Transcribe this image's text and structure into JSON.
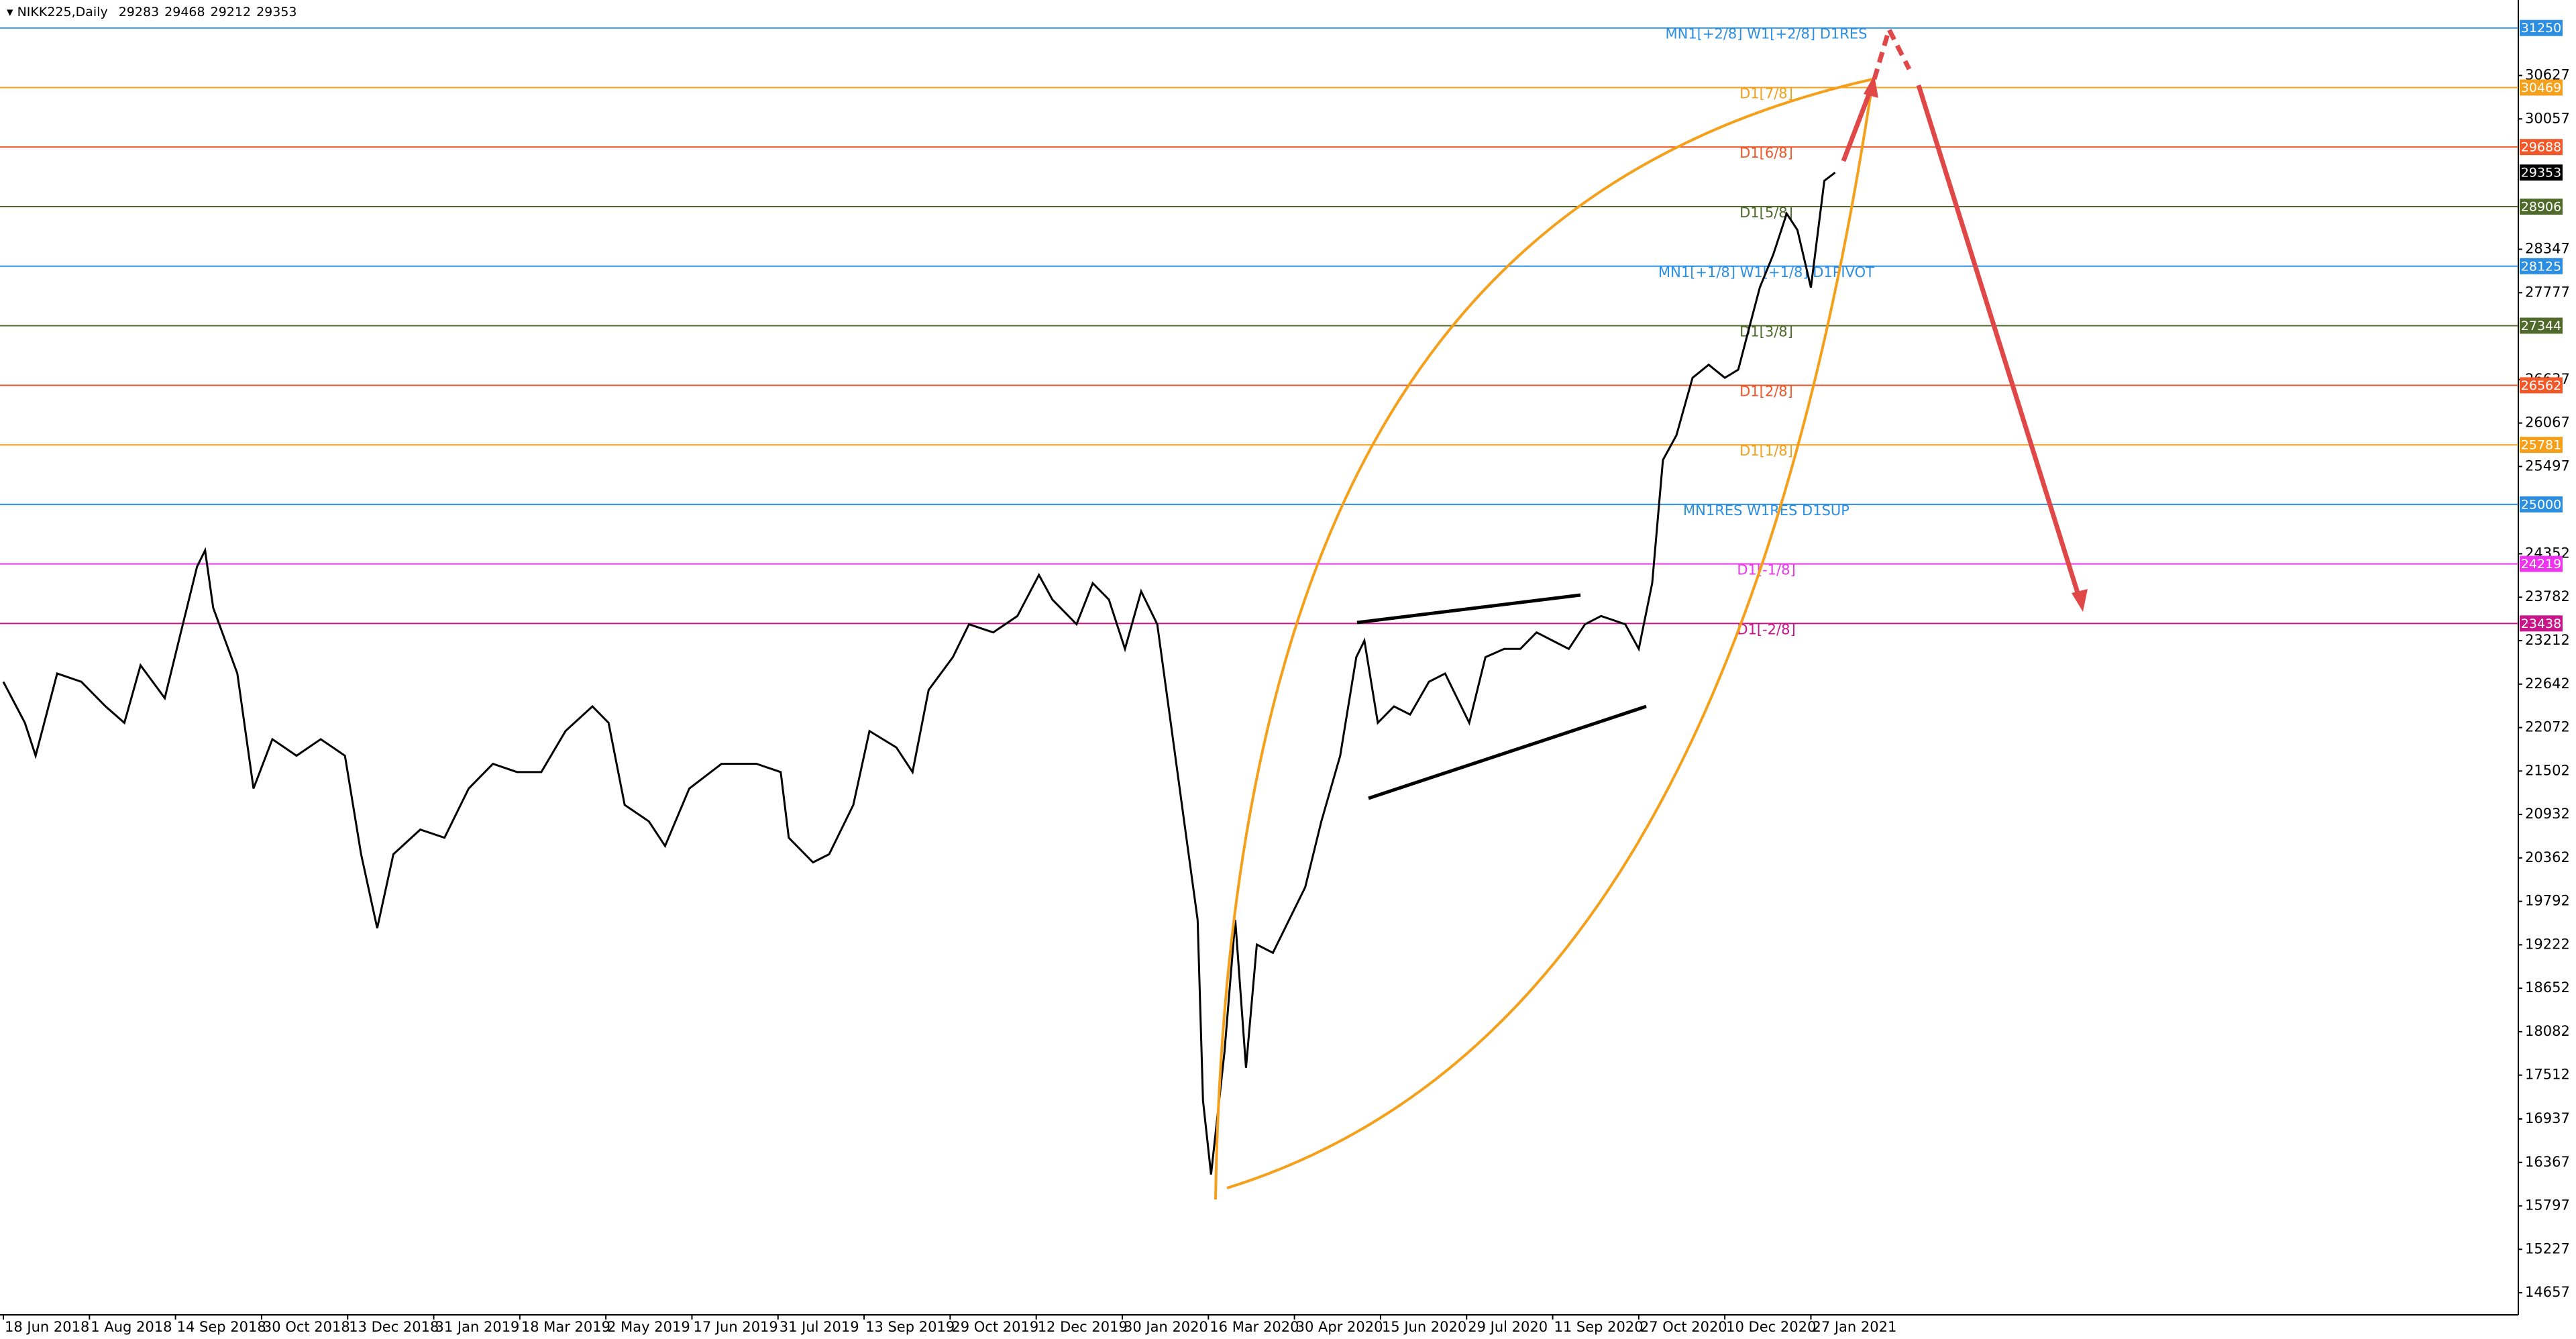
{
  "chart_data": {
    "type": "line",
    "title": "NIKK225,Daily",
    "last_ohlc": [
      29283,
      29468,
      29212,
      29353
    ],
    "xlim": [
      0,
      935
    ],
    "xticks": [
      {
        "value": 0,
        "label": "18 Jun 2018"
      },
      {
        "value": 32,
        "label": "1 Aug 2018"
      },
      {
        "value": 64,
        "label": "14 Sep 2018"
      },
      {
        "value": 96,
        "label": "30 Oct 2018"
      },
      {
        "value": 128,
        "label": "13 Dec 2018"
      },
      {
        "value": 160,
        "label": "31 Jan 2019"
      },
      {
        "value": 192,
        "label": "18 Mar 2019"
      },
      {
        "value": 224,
        "label": "2 May 2019"
      },
      {
        "value": 256,
        "label": "17 Jun 2019"
      },
      {
        "value": 288,
        "label": "31 Jul 2019"
      },
      {
        "value": 320,
        "label": "13 Sep 2019"
      },
      {
        "value": 352,
        "label": "29 Oct 2019"
      },
      {
        "value": 384,
        "label": "12 Dec 2019"
      },
      {
        "value": 416,
        "label": "30 Jan 2020"
      },
      {
        "value": 448,
        "label": "16 Mar 2020"
      },
      {
        "value": 480,
        "label": "30 Apr 2020"
      },
      {
        "value": 512,
        "label": "15 Jun 2020"
      },
      {
        "value": 544,
        "label": "29 Jul 2020"
      },
      {
        "value": 576,
        "label": "11 Sep 2020"
      },
      {
        "value": 608,
        "label": "27 Oct 2020"
      },
      {
        "value": 640,
        "label": "10 Dec 2020"
      },
      {
        "value": 672,
        "label": "27 Jan 2021"
      }
    ],
    "ylim": [
      14376,
      31573
    ],
    "yticks": [
      30627,
      30057,
      28347,
      27777,
      26637,
      26067,
      25497,
      24352,
      23782,
      23212,
      22642,
      22072,
      21502,
      20932,
      20362,
      19792,
      19222,
      18652,
      18082,
      17512,
      16937,
      16367,
      15797,
      15227,
      14657
    ],
    "x": [
      0,
      8,
      12,
      20,
      29,
      38,
      45,
      51,
      60,
      66,
      72,
      75,
      78,
      87,
      93,
      100,
      109,
      118,
      127,
      133,
      139,
      145,
      155,
      164,
      173,
      182,
      191,
      200,
      209,
      219,
      225,
      231,
      240,
      246,
      255,
      267,
      280,
      289,
      292,
      301,
      307,
      316,
      322,
      332,
      338,
      344,
      353,
      359,
      368,
      377,
      385,
      390,
      399,
      405,
      411,
      417,
      423,
      429,
      434,
      439,
      444,
      446,
      449,
      454,
      458,
      462,
      466,
      472,
      478,
      484,
      490,
      497,
      503,
      506,
      511,
      517,
      523,
      530,
      536,
      545,
      551,
      558,
      564,
      570,
      576,
      582,
      588,
      594,
      603,
      608,
      613,
      617,
      622,
      628,
      634,
      640,
      645,
      649,
      653,
      658,
      663,
      667,
      672,
      677,
      681
    ],
    "values": [
      22673,
      22134,
      21703,
      22781,
      22673,
      22350,
      22134,
      22889,
      22458,
      23320,
      24182,
      24397,
      23643,
      22781,
      21272,
      21919,
      21703,
      21919,
      21703,
      20410,
      19441,
      20410,
      20734,
      20626,
      21272,
      21596,
      21488,
      21488,
      22027,
      22350,
      22134,
      21057,
      20841,
      20518,
      21272,
      21596,
      21596,
      21488,
      20626,
      20303,
      20410,
      21057,
      22027,
      21811,
      21488,
      22565,
      22996,
      23427,
      23320,
      23535,
      24074,
      23751,
      23427,
      23966,
      23751,
      23104,
      23859,
      23427,
      22134,
      20841,
      19548,
      17178,
      16208,
      17824,
      19548,
      17609,
      19225,
      19117,
      19548,
      19979,
      20841,
      21703,
      22996,
      23212,
      22134,
      22350,
      22242,
      22673,
      22781,
      22134,
      22996,
      23104,
      23104,
      23320,
      23212,
      23104,
      23427,
      23535,
      23427,
      23104,
      23966,
      25582,
      25906,
      26660,
      26832,
      26660,
      26768,
      27306,
      27845,
      28276,
      28815,
      28599,
      27845,
      29246,
      29353
    ],
    "color": "#000000",
    "levels": [
      {
        "value": 31250,
        "label": "MN1[+2/8] W1[+2/8] D1RES",
        "color": "#2b8ee0"
      },
      {
        "value": 30469,
        "label": "D1[7/8]",
        "color": "#f5a01a"
      },
      {
        "value": 29688,
        "label": "D1[6/8]",
        "color": "#f0582a"
      },
      {
        "value": 28906,
        "label": "D1[5/8]",
        "color": "#4f6a2a"
      },
      {
        "value": 28125,
        "label": "MN1[+1/8] W1[+1/8] D1PIVOT",
        "color": "#2b8ee0"
      },
      {
        "value": 27344,
        "label": "D1[3/8]",
        "color": "#4f6a2a"
      },
      {
        "value": 26562,
        "label": "D1[2/8]",
        "color": "#f0582a"
      },
      {
        "value": 25781,
        "label": "D1[1/8]",
        "color": "#f5a01a"
      },
      {
        "value": 25000,
        "label": "MN1RES W1RES D1SUP",
        "color": "#2b8ee0"
      },
      {
        "value": 24219,
        "label": "D1[-1/8]",
        "color": "#ee33ee"
      },
      {
        "value": 23438,
        "label": "D1[-2/8]",
        "color": "#c7168a"
      }
    ],
    "last_price": 29353
  }
}
